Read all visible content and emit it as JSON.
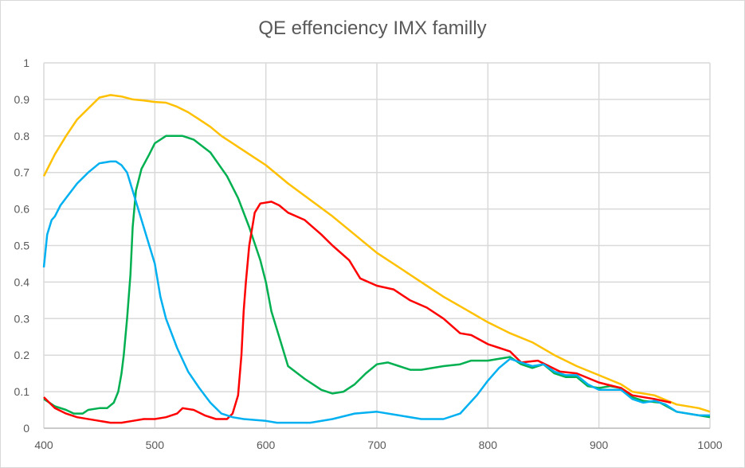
{
  "chart_data": {
    "type": "line",
    "title": "QE effenciency IMX familly",
    "xlabel": "",
    "ylabel": "",
    "xlim": [
      400,
      1000
    ],
    "ylim": [
      0,
      1
    ],
    "x_ticks": [
      "400",
      "500",
      "600",
      "700",
      "800",
      "900",
      "1000"
    ],
    "y_ticks": [
      "0",
      "0.1",
      "0.2",
      "0.3",
      "0.4",
      "0.5",
      "0.6",
      "0.7",
      "0.8",
      "0.9",
      "1"
    ],
    "grid": true,
    "legend": "none",
    "series": [
      {
        "color": "#FFC000",
        "points": [
          [
            400,
            0.69
          ],
          [
            410,
            0.75
          ],
          [
            420,
            0.8
          ],
          [
            430,
            0.845
          ],
          [
            440,
            0.875
          ],
          [
            450,
            0.905
          ],
          [
            460,
            0.912
          ],
          [
            470,
            0.908
          ],
          [
            480,
            0.9
          ],
          [
            490,
            0.897
          ],
          [
            500,
            0.893
          ],
          [
            510,
            0.891
          ],
          [
            520,
            0.88
          ],
          [
            530,
            0.865
          ],
          [
            540,
            0.845
          ],
          [
            550,
            0.825
          ],
          [
            560,
            0.8
          ],
          [
            570,
            0.78
          ],
          [
            580,
            0.76
          ],
          [
            590,
            0.74
          ],
          [
            600,
            0.72
          ],
          [
            620,
            0.67
          ],
          [
            640,
            0.625
          ],
          [
            660,
            0.58
          ],
          [
            680,
            0.53
          ],
          [
            700,
            0.48
          ],
          [
            720,
            0.44
          ],
          [
            740,
            0.4
          ],
          [
            760,
            0.36
          ],
          [
            780,
            0.325
          ],
          [
            800,
            0.29
          ],
          [
            820,
            0.26
          ],
          [
            840,
            0.235
          ],
          [
            860,
            0.2
          ],
          [
            880,
            0.17
          ],
          [
            900,
            0.145
          ],
          [
            920,
            0.12
          ],
          [
            930,
            0.1
          ],
          [
            950,
            0.09
          ],
          [
            970,
            0.065
          ],
          [
            990,
            0.055
          ],
          [
            1000,
            0.045
          ]
        ]
      },
      {
        "color": "#00B050",
        "points": [
          [
            400,
            0.08
          ],
          [
            410,
            0.06
          ],
          [
            420,
            0.05
          ],
          [
            427,
            0.04
          ],
          [
            435,
            0.04
          ],
          [
            440,
            0.05
          ],
          [
            450,
            0.055
          ],
          [
            457,
            0.055
          ],
          [
            463,
            0.07
          ],
          [
            467,
            0.1
          ],
          [
            470,
            0.15
          ],
          [
            472,
            0.2
          ],
          [
            475,
            0.3
          ],
          [
            478,
            0.42
          ],
          [
            480,
            0.55
          ],
          [
            483,
            0.65
          ],
          [
            488,
            0.71
          ],
          [
            495,
            0.75
          ],
          [
            500,
            0.78
          ],
          [
            510,
            0.8
          ],
          [
            525,
            0.8
          ],
          [
            535,
            0.79
          ],
          [
            550,
            0.755
          ],
          [
            565,
            0.69
          ],
          [
            575,
            0.63
          ],
          [
            585,
            0.55
          ],
          [
            595,
            0.46
          ],
          [
            600,
            0.4
          ],
          [
            605,
            0.32
          ],
          [
            612,
            0.25
          ],
          [
            620,
            0.17
          ],
          [
            635,
            0.135
          ],
          [
            650,
            0.105
          ],
          [
            660,
            0.095
          ],
          [
            670,
            0.1
          ],
          [
            680,
            0.12
          ],
          [
            690,
            0.15
          ],
          [
            700,
            0.175
          ],
          [
            710,
            0.18
          ],
          [
            720,
            0.17
          ],
          [
            730,
            0.16
          ],
          [
            740,
            0.16
          ],
          [
            760,
            0.17
          ],
          [
            775,
            0.175
          ],
          [
            785,
            0.185
          ],
          [
            800,
            0.185
          ],
          [
            820,
            0.195
          ],
          [
            830,
            0.175
          ],
          [
            840,
            0.165
          ],
          [
            850,
            0.175
          ],
          [
            860,
            0.15
          ],
          [
            870,
            0.14
          ],
          [
            880,
            0.14
          ],
          [
            890,
            0.115
          ],
          [
            900,
            0.11
          ],
          [
            910,
            0.115
          ],
          [
            920,
            0.11
          ],
          [
            930,
            0.085
          ],
          [
            940,
            0.075
          ],
          [
            955,
            0.07
          ],
          [
            970,
            0.045
          ],
          [
            990,
            0.035
          ],
          [
            1000,
            0.03
          ]
        ]
      },
      {
        "color": "#FF0000",
        "points": [
          [
            400,
            0.085
          ],
          [
            410,
            0.055
          ],
          [
            420,
            0.04
          ],
          [
            430,
            0.03
          ],
          [
            450,
            0.02
          ],
          [
            460,
            0.015
          ],
          [
            470,
            0.015
          ],
          [
            480,
            0.02
          ],
          [
            490,
            0.025
          ],
          [
            500,
            0.025
          ],
          [
            510,
            0.03
          ],
          [
            520,
            0.04
          ],
          [
            525,
            0.055
          ],
          [
            535,
            0.05
          ],
          [
            545,
            0.035
          ],
          [
            555,
            0.025
          ],
          [
            565,
            0.025
          ],
          [
            570,
            0.04
          ],
          [
            575,
            0.09
          ],
          [
            578,
            0.2
          ],
          [
            580,
            0.32
          ],
          [
            582,
            0.4
          ],
          [
            585,
            0.5
          ],
          [
            590,
            0.59
          ],
          [
            595,
            0.615
          ],
          [
            605,
            0.62
          ],
          [
            612,
            0.61
          ],
          [
            620,
            0.59
          ],
          [
            635,
            0.57
          ],
          [
            650,
            0.53
          ],
          [
            660,
            0.5
          ],
          [
            675,
            0.46
          ],
          [
            685,
            0.41
          ],
          [
            700,
            0.39
          ],
          [
            715,
            0.38
          ],
          [
            730,
            0.35
          ],
          [
            745,
            0.33
          ],
          [
            760,
            0.3
          ],
          [
            775,
            0.26
          ],
          [
            785,
            0.255
          ],
          [
            800,
            0.23
          ],
          [
            810,
            0.22
          ],
          [
            820,
            0.21
          ],
          [
            830,
            0.18
          ],
          [
            845,
            0.185
          ],
          [
            855,
            0.17
          ],
          [
            865,
            0.155
          ],
          [
            880,
            0.15
          ],
          [
            900,
            0.125
          ],
          [
            920,
            0.11
          ],
          [
            930,
            0.09
          ],
          [
            950,
            0.08
          ],
          [
            965,
            0.07
          ]
        ]
      },
      {
        "color": "#00B0F0",
        "points": [
          [
            400,
            0.44
          ],
          [
            403,
            0.53
          ],
          [
            407,
            0.57
          ],
          [
            410,
            0.58
          ],
          [
            415,
            0.61
          ],
          [
            420,
            0.63
          ],
          [
            430,
            0.67
          ],
          [
            440,
            0.7
          ],
          [
            450,
            0.725
          ],
          [
            460,
            0.73
          ],
          [
            465,
            0.73
          ],
          [
            470,
            0.72
          ],
          [
            475,
            0.7
          ],
          [
            480,
            0.65
          ],
          [
            490,
            0.55
          ],
          [
            500,
            0.45
          ],
          [
            505,
            0.36
          ],
          [
            510,
            0.3
          ],
          [
            520,
            0.22
          ],
          [
            530,
            0.155
          ],
          [
            540,
            0.11
          ],
          [
            550,
            0.07
          ],
          [
            560,
            0.04
          ],
          [
            570,
            0.03
          ],
          [
            580,
            0.025
          ],
          [
            600,
            0.02
          ],
          [
            610,
            0.015
          ],
          [
            640,
            0.015
          ],
          [
            660,
            0.025
          ],
          [
            680,
            0.04
          ],
          [
            700,
            0.045
          ],
          [
            720,
            0.035
          ],
          [
            740,
            0.025
          ],
          [
            760,
            0.025
          ],
          [
            775,
            0.04
          ],
          [
            790,
            0.09
          ],
          [
            800,
            0.13
          ],
          [
            810,
            0.165
          ],
          [
            820,
            0.19
          ],
          [
            830,
            0.18
          ],
          [
            840,
            0.17
          ],
          [
            850,
            0.175
          ],
          [
            860,
            0.155
          ],
          [
            870,
            0.145
          ],
          [
            880,
            0.145
          ],
          [
            890,
            0.12
          ],
          [
            900,
            0.105
          ],
          [
            920,
            0.105
          ],
          [
            930,
            0.08
          ],
          [
            940,
            0.07
          ],
          [
            950,
            0.075
          ],
          [
            960,
            0.065
          ],
          [
            970,
            0.045
          ],
          [
            990,
            0.035
          ],
          [
            1000,
            0.035
          ]
        ]
      }
    ]
  }
}
